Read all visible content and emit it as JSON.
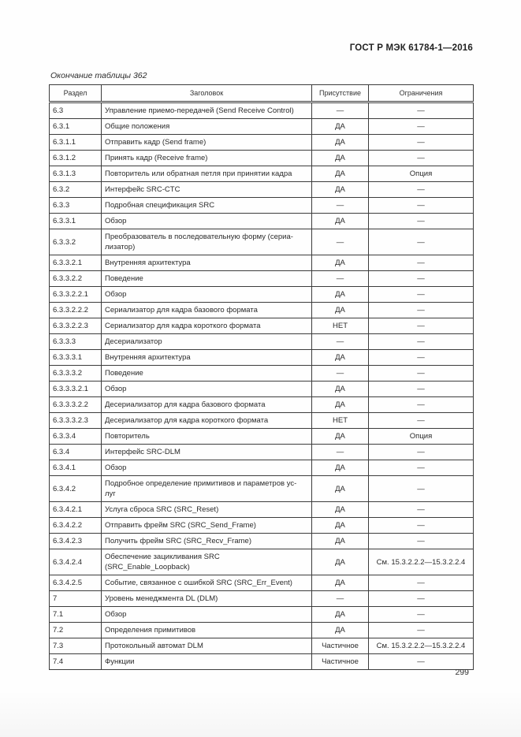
{
  "page": {
    "doc_header": "ГОСТ Р МЭК 61784-1—2016",
    "table_caption": "Окончание таблицы 362",
    "page_number": "299"
  },
  "table": {
    "columns": [
      "Раздел",
      "Заголовок",
      "Присутствие",
      "Ограничения"
    ],
    "rows": [
      [
        "6.3",
        "Управление приемо-передачей (Send Receive Control)",
        "—",
        "—"
      ],
      [
        "6.3.1",
        "Общие положения",
        "ДА",
        "—"
      ],
      [
        "6.3.1.1",
        "Отправить кадр (Send frame)",
        "ДА",
        "—"
      ],
      [
        "6.3.1.2",
        "Принять кадр (Receive frame)",
        "ДА",
        "—"
      ],
      [
        "6.3.1.3",
        "Повторитель или обратная петля при принятии кадра",
        "ДА",
        "Опция"
      ],
      [
        "6.3.2",
        "Интерфейс SRC-CTC",
        "ДА",
        "—"
      ],
      [
        "6.3.3",
        "Подробная спецификация SRC",
        "—",
        "—"
      ],
      [
        "6.3.3.1",
        "Обзор",
        "ДА",
        "—"
      ],
      [
        "6.3.3.2",
        "Преобразователь в последовательную форму (сериа-\nлизатор)",
        "—",
        "—"
      ],
      [
        "6.3.3.2.1",
        "Внутренняя архитектура",
        "ДА",
        "—"
      ],
      [
        "6.3.3.2.2",
        "Поведение",
        "—",
        "—"
      ],
      [
        "6.3.3.2.2.1",
        "Обзор",
        "ДА",
        "—"
      ],
      [
        "6.3.3.2.2.2",
        "Сериализатор для кадра базового формата",
        "ДА",
        "—"
      ],
      [
        "6.3.3.2.2.3",
        "Сериализатор для кадра короткого формата",
        "НЕТ",
        "—"
      ],
      [
        "6.3.3.3",
        "Десериализатор",
        "—",
        "—"
      ],
      [
        "6.3.3.3.1",
        "Внутренняя архитектура",
        "ДА",
        "—"
      ],
      [
        "6.3.3.3.2",
        "Поведение",
        "—",
        "—"
      ],
      [
        "6.3.3.3.2.1",
        "Обзор",
        "ДА",
        "—"
      ],
      [
        "6.3.3.3.2.2",
        "Десериализатор для кадра базового формата",
        "ДА",
        "—"
      ],
      [
        "6.3.3.3.2.3",
        "Десериализатор для кадра короткого формата",
        "НЕТ",
        "—"
      ],
      [
        "6.3.3.4",
        "Повторитель",
        "ДА",
        "Опция"
      ],
      [
        "6.3.4",
        "Интерфейс SRC-DLM",
        "—",
        "—"
      ],
      [
        "6.3.4.1",
        "Обзор",
        "ДА",
        "—"
      ],
      [
        "6.3.4.2",
        "Подробное определение примитивов и параметров ус-\nлуг",
        "ДА",
        "—"
      ],
      [
        "6.3.4.2.1",
        "Услуга сброса SRC (SRC_Reset)",
        "ДА",
        "—"
      ],
      [
        "6.3.4.2.2",
        "Отправить фрейм SRC (SRC_Send_Frame)",
        "ДА",
        "—"
      ],
      [
        "6.3.4.2.3",
        "Получить фрейм SRC (SRC_Recv_Frame)",
        "ДА",
        "—"
      ],
      [
        "6.3.4.2.4",
        "Обеспечение зацикливания SRC\n(SRC_Enable_Loopback)",
        "ДА",
        "См. 15.3.2.2.2—15.3.2.2.4"
      ],
      [
        "6.3.4.2.5",
        "Событие, связанное с ошибкой SRC (SRC_Err_Event)",
        "ДА",
        "—"
      ],
      [
        "7",
        "Уровень менеджмента DL (DLM)",
        "—",
        "—"
      ],
      [
        "7.1",
        "Обзор",
        "ДА",
        "—"
      ],
      [
        "7.2",
        "Определения примитивов",
        "ДА",
        "—"
      ],
      [
        "7.3",
        "Протокольный автомат DLM",
        "Частичное",
        "См. 15.3.2.2.2—15.3.2.2.4"
      ],
      [
        "7.4",
        "Функции",
        "Частичное",
        "—"
      ]
    ]
  }
}
